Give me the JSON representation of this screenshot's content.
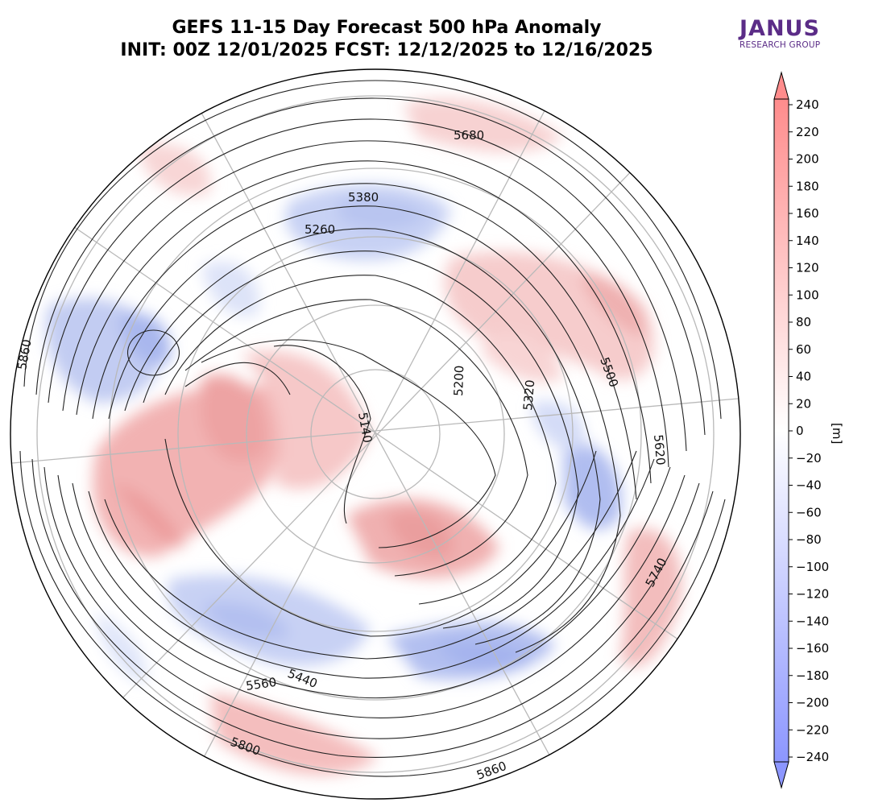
{
  "title": {
    "line1": "GEFS 11-15 Day Forecast 500 hPa Anomaly",
    "line2": "INIT: 00Z 12/01/2025     FCST: 12/12/2025 to 12/16/2025"
  },
  "logo": {
    "name": "JANUS",
    "subtitle": "RESEARCH GROUP",
    "color": "#5b2c87"
  },
  "colorbar": {
    "unit_label": "[m]",
    "ticks": [
      240,
      220,
      200,
      180,
      160,
      140,
      120,
      100,
      80,
      60,
      40,
      20,
      0,
      -20,
      -40,
      -60,
      -80,
      -100,
      -120,
      -140,
      -160,
      -180,
      -200,
      -220,
      -240
    ],
    "range": [
      -240,
      240
    ],
    "colors": {
      "positive": "#ff8c8c",
      "negative": "#8c96ff",
      "neutral": "#ffffff"
    }
  },
  "map": {
    "projection": "north polar stereographic",
    "contour_labels": [
      "5680",
      "5380",
      "5260",
      "5860",
      "5200",
      "5320",
      "5500",
      "5140",
      "5620",
      "5740",
      "5440",
      "5560",
      "5800",
      "5860"
    ]
  }
}
